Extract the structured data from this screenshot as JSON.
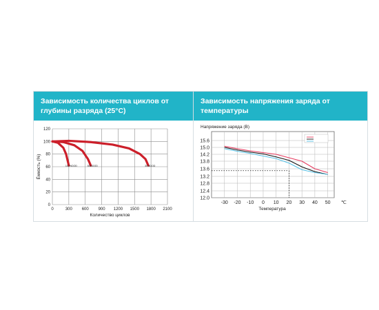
{
  "colors": {
    "header_bg": "#21b4c8",
    "header_text": "#ffffff",
    "left_curve": "#cc1f2a",
    "grid": "#8c8c8c",
    "line_red": "#e63a5e",
    "line_black": "#111111",
    "line_blue": "#56c1e6"
  },
  "panels": [
    {
      "header_line1": "Зависимость количества циклов от",
      "header_line2": "глубины разряда (25°C)"
    },
    {
      "header_line1": "Зависимость напряжения заряда от",
      "header_line2": "температуры"
    }
  ],
  "chart_data": [
    {
      "type": "line",
      "title": "Зависимость количества циклов от глубины разряда (25°C)",
      "xlabel": "Количество циклов",
      "ylabel": "Ёмкость (%)",
      "xlim": [
        0,
        2100
      ],
      "ylim": [
        0,
        120
      ],
      "x_ticks": [
        "0",
        "300",
        "600",
        "900",
        "1200",
        "1500",
        "1800",
        "2100"
      ],
      "y_ticks": [
        "0",
        "20",
        "40",
        "60",
        "80",
        "100",
        "120"
      ],
      "grid": true,
      "series": [
        {
          "name": "100%DOD",
          "x": [
            0,
            100,
            200,
            250,
            300
          ],
          "y": [
            100,
            98,
            90,
            80,
            62
          ]
        },
        {
          "name": "50%DOD",
          "x": [
            0,
            200,
            400,
            550,
            650,
            700
          ],
          "y": [
            100,
            99,
            94,
            85,
            72,
            62
          ]
        },
        {
          "name": "30%DOD",
          "x": [
            0,
            300,
            700,
            1100,
            1400,
            1600,
            1700,
            1750
          ],
          "y": [
            100,
            101,
            99,
            95,
            89,
            80,
            72,
            62
          ]
        }
      ]
    },
    {
      "type": "line",
      "title": "Зависимость напряжения заряда от температуры",
      "subtitle": "Напряжение заряда (В)",
      "xlabel": "Температура",
      "x_unit": "℃",
      "xlim": [
        -40,
        55
      ],
      "ylim": [
        12.0,
        15.6
      ],
      "x_ticks": [
        "-30",
        "-20",
        "-10",
        "0",
        "10",
        "20",
        "30",
        "40",
        "50"
      ],
      "y_ticks": [
        "12.0",
        "12.4",
        "12.8",
        "13.2",
        "13.6",
        "13.8",
        "14.2",
        "15.0",
        "15.6"
      ],
      "grid": true,
      "legend_position": "top-right",
      "series": [
        {
          "x": [
            -30,
            -20,
            -10,
            0,
            10,
            20,
            30,
            40,
            50
          ],
          "y": [
            15.1,
            14.85,
            14.6,
            14.4,
            14.2,
            14.0,
            13.8,
            13.6,
            13.4
          ]
        },
        {
          "x": [
            -30,
            -20,
            -10,
            0,
            10,
            20,
            30,
            40,
            50
          ],
          "y": [
            15.0,
            14.7,
            14.45,
            14.25,
            14.05,
            13.85,
            13.65,
            13.45,
            13.3
          ]
        },
        {
          "x": [
            -30,
            -20,
            -10,
            0,
            10,
            20,
            30,
            40,
            50
          ],
          "y": [
            14.85,
            14.55,
            14.3,
            14.1,
            13.95,
            13.75,
            13.55,
            13.4,
            13.3
          ]
        }
      ],
      "reference": {
        "x": 20,
        "y": 13.5
      }
    }
  ]
}
